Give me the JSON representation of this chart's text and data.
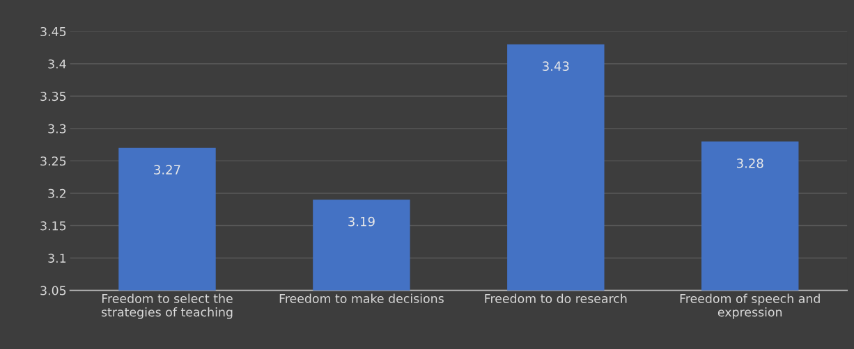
{
  "chart_data": {
    "type": "bar",
    "categories": [
      "Freedom to select the\nstrategies of teaching",
      "Freedom to make decisions",
      "Freedom to do research",
      "Freedom of speech and\nexpression"
    ],
    "values": [
      3.27,
      3.19,
      3.43,
      3.28
    ],
    "color": "#4472c4",
    "ylim": [
      3.05,
      3.45
    ],
    "yticks": [
      3.05,
      3.1,
      3.15,
      3.2,
      3.25,
      3.3,
      3.35,
      3.4,
      3.45
    ],
    "grid": "y",
    "data_labels": true
  }
}
